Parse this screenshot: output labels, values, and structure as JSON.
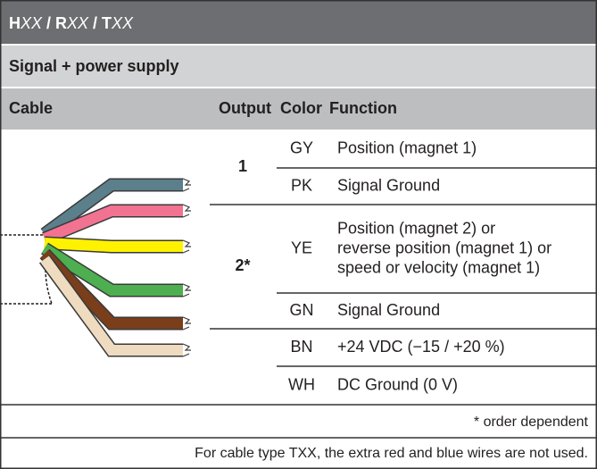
{
  "header": {
    "title_parts": [
      {
        "text": "H",
        "style": "bold"
      },
      {
        "text": "XX",
        "style": "italic"
      },
      {
        "text": " / R",
        "style": "bold"
      },
      {
        "text": "XX",
        "style": "italic"
      },
      {
        "text": " / T",
        "style": "bold"
      },
      {
        "text": "XX",
        "style": "italic"
      }
    ]
  },
  "section": "Signal + power supply",
  "columns": [
    "Cable",
    "Output",
    "Color",
    "Function"
  ],
  "outputs": [
    "1",
    "2*"
  ],
  "rows": [
    {
      "color": "GY",
      "function": [
        "Position (magnet 1)"
      ]
    },
    {
      "color": "PK",
      "function": [
        "Signal Ground"
      ]
    },
    {
      "color": "YE",
      "function": [
        "Position (magnet 2) or",
        "reverse position (magnet 1) or",
        "speed or velocity (magnet 1)"
      ]
    },
    {
      "color": "GN",
      "function": [
        "Signal Ground"
      ]
    },
    {
      "color": "BN",
      "function": [
        "+24 VDC (−15 / +20 %)"
      ]
    },
    {
      "color": "WH",
      "function": [
        "DC Ground (0 V)"
      ]
    }
  ],
  "footnote": "* order dependent",
  "note": "For cable type TXX, the extra red and blue wires are not used."
}
